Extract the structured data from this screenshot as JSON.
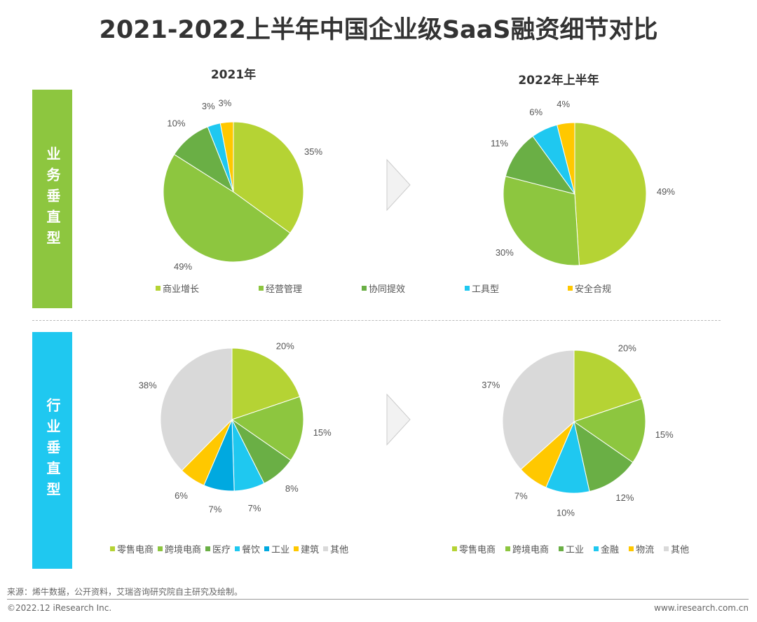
{
  "title": "2021-2022上半年中国企业级SaaS融资细节对比",
  "row_labels": [
    "业务垂直型",
    "行业垂直型"
  ],
  "colors": {
    "light_green": "#B5D334",
    "green": "#8DC63F",
    "dark_green": "#6AAF45",
    "cyan": "#1FC8F0",
    "blue": "#00A9E0",
    "yellow": "#FFC800",
    "gray": "#D9D9D9",
    "bar_green": "#8DC63F",
    "bar_cyan": "#1FC8F0"
  },
  "chart_data": [
    {
      "type": "pie",
      "title": "2021年",
      "categories": [
        "商业增长",
        "经营管理",
        "协同提效",
        "工具型",
        "安全合规"
      ],
      "values": [
        35,
        49,
        10,
        3,
        3
      ],
      "colors": [
        "#B5D334",
        "#8DC63F",
        "#6AAF45",
        "#1FC8F0",
        "#FFC800"
      ],
      "labels": [
        "35%",
        "49%",
        "10%",
        "3%",
        "3%"
      ]
    },
    {
      "type": "pie",
      "title": "2022年上半年",
      "categories": [
        "商业增长",
        "经营管理",
        "协同提效",
        "工具型",
        "安全合规"
      ],
      "values": [
        49,
        30,
        11,
        6,
        4
      ],
      "colors": [
        "#B5D334",
        "#8DC63F",
        "#6AAF45",
        "#1FC8F0",
        "#FFC800"
      ],
      "labels": [
        "49%",
        "30%",
        "11%",
        "6%",
        "4%"
      ]
    },
    {
      "type": "pie",
      "title": "",
      "categories": [
        "零售电商",
        "跨境电商",
        "医疗",
        "餐饮",
        "工业",
        "建筑",
        "其他"
      ],
      "values": [
        20,
        15,
        8,
        7,
        7,
        6,
        38
      ],
      "colors": [
        "#B5D334",
        "#8DC63F",
        "#6AAF45",
        "#1FC8F0",
        "#00A9E0",
        "#FFC800",
        "#D9D9D9"
      ],
      "labels": [
        "20%",
        "15%",
        "8%",
        "7%",
        "7%",
        "6%",
        "38%"
      ]
    },
    {
      "type": "pie",
      "title": "",
      "categories": [
        "零售电商",
        "跨境电商",
        "工业",
        "金融",
        "物流",
        "其他"
      ],
      "values": [
        20,
        15,
        12,
        10,
        7,
        37
      ],
      "colors": [
        "#B5D334",
        "#8DC63F",
        "#6AAF45",
        "#1FC8F0",
        "#FFC800",
        "#D9D9D9"
      ],
      "labels": [
        "20%",
        "15%",
        "12%",
        "10%",
        "7%",
        "37%"
      ]
    }
  ],
  "footer": {
    "source": "来源：烯牛数据，公开资料，艾瑞咨询研究院自主研究及绘制。",
    "copyright": "©2022.12 iResearch Inc.",
    "url": "www.iresearch.com.cn"
  }
}
